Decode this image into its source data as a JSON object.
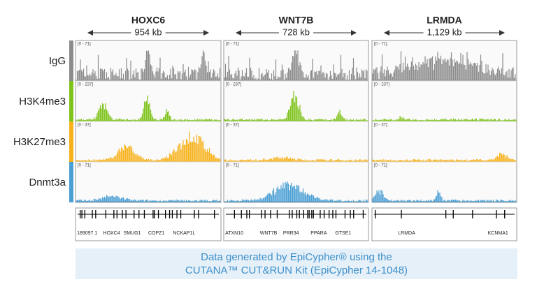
{
  "header": {
    "panels": [
      {
        "title": "HOXC6",
        "size": "954 kb",
        "genes": [
          "189097.1",
          "HOXC4",
          "SMUG1",
          "COPZ1",
          "NCKAP1L"
        ]
      },
      {
        "title": "WNT7B",
        "size": "728 kb",
        "genes": [
          "ATXN10",
          "WNT7B",
          "PRR34",
          "PPARA",
          "GTSE1"
        ]
      },
      {
        "title": "LRMDA",
        "size": "1,129 kb",
        "genes": [
          "LRMDA",
          "KCNMA1"
        ]
      }
    ]
  },
  "tracks": [
    {
      "label": "IgG",
      "color": "#8c8c8c",
      "range": "[0 - 71]"
    },
    {
      "label": "H3K4me3",
      "color": "#7fc31c",
      "range": "[0 - 237]"
    },
    {
      "label": "H3K27me3",
      "color": "#f7b21b",
      "range": "[0 - 37]"
    },
    {
      "label": "Dnmt3a",
      "color": "#4a9fd4",
      "range": "[0 - 71]"
    }
  ],
  "footer": {
    "line1": "Data generated by EpiCypher® using the",
    "line2": "CUTANA™ CUT&RUN Kit (EpiCypher 14-1048)"
  }
}
